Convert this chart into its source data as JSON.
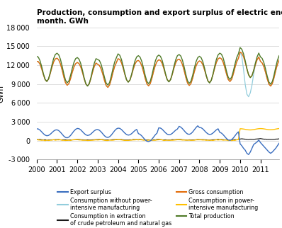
{
  "title": "Production, consumption and export surplus of electric energy per\nmonth. GWh",
  "ylabel": "GWh",
  "ylim": [
    -3000,
    18000
  ],
  "yticks": [
    -3000,
    0,
    3000,
    6000,
    9000,
    12000,
    15000,
    18000
  ],
  "xlim_start": 2000.0,
  "xlim_end": 2011.92,
  "colors": {
    "export_surplus": "#3a6ebf",
    "consumption_extraction": "#1a1a1a",
    "consumption_power_intensive": "#FFC000",
    "consumption_without_power_intensive": "#92CDDC",
    "gross_consumption": "#E36C09",
    "total_production": "#4f7a28"
  },
  "year_start": 2000,
  "year_end": 2012
}
